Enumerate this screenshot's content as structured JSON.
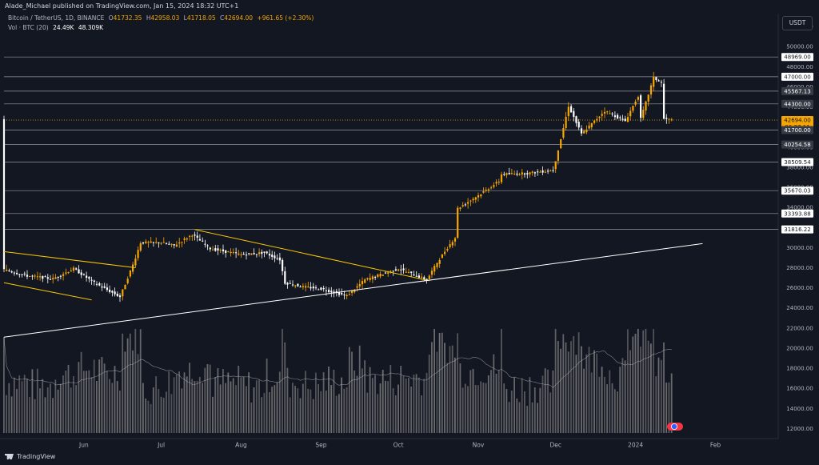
{
  "header": {
    "publisher": "Alade_Michael published on TradingView.com, Jan 15, 2024 18:32 UTC+1",
    "symbol": "Bitcoin / TetherUS, 1D, BINANCE",
    "ohlc": {
      "open_label": "O",
      "open": "41732.35",
      "high_label": "H",
      "high": "42958.03",
      "low_label": "L",
      "low": "41718.05",
      "close_label": "C",
      "close": "42694.00",
      "change": "+961.65 (+2.30%)"
    },
    "volume": {
      "label": "Vol · BTC (20)",
      "value": "24.49K",
      "ma": "48.309K"
    }
  },
  "currency_button": "USDT",
  "footer": {
    "brand": "TradingView"
  },
  "colors": {
    "background": "#131722",
    "up": "#f7a600",
    "down": "#ffffff",
    "trendline_yellow": "#f7c600",
    "trendline_white": "#ffffff",
    "level_line": "#9598a1",
    "volume": "#808080"
  },
  "chart_data": {
    "type": "candlestick",
    "symbol": "BTCUSDT",
    "timeframe": "1D",
    "price_axis": {
      "range": [
        11000,
        54000
      ],
      "ticks": [
        "52000.00",
        "50000.00",
        "48000.00",
        "46000.00",
        "44000.00",
        "42000.00",
        "40000.00",
        "38000.00",
        "36000.00",
        "34000.00",
        "32000.00",
        "30000.00",
        "28000.00",
        "26000.00",
        "24000.00",
        "22000.00",
        "20000.00",
        "18000.00",
        "16000.00",
        "14000.00",
        "12000.00"
      ]
    },
    "time_axis": {
      "start": "2023-05-01",
      "end": "2024-02-12",
      "ticks": [
        {
          "label": "Jun",
          "date": "2023-06-01"
        },
        {
          "label": "Jul",
          "date": "2023-07-01"
        },
        {
          "label": "Aug",
          "date": "2023-08-01"
        },
        {
          "label": "Sep",
          "date": "2023-09-01"
        },
        {
          "label": "Oct",
          "date": "2023-10-01"
        },
        {
          "label": "Nov",
          "date": "2023-11-01"
        },
        {
          "label": "Dec",
          "date": "2023-12-01"
        },
        {
          "label": "2024",
          "date": "2024-01-01"
        },
        {
          "label": "Feb",
          "date": "2024-02-01"
        }
      ]
    },
    "price_path": [
      [
        "2023-05-01",
        27800
      ],
      [
        "2023-05-10",
        27200
      ],
      [
        "2023-05-20",
        26900
      ],
      [
        "2023-05-28",
        27900
      ],
      [
        "2023-06-05",
        26500
      ],
      [
        "2023-06-10",
        25800
      ],
      [
        "2023-06-15",
        25100
      ],
      [
        "2023-06-20",
        28300
      ],
      [
        "2023-06-23",
        30500
      ],
      [
        "2023-07-01",
        30500
      ],
      [
        "2023-07-06",
        30200
      ],
      [
        "2023-07-13",
        31300
      ],
      [
        "2023-07-20",
        29900
      ],
      [
        "2023-08-01",
        29300
      ],
      [
        "2023-08-10",
        29500
      ],
      [
        "2023-08-16",
        28800
      ],
      [
        "2023-08-18",
        26500
      ],
      [
        "2023-08-25",
        26100
      ],
      [
        "2023-09-01",
        25900
      ],
      [
        "2023-09-11",
        25200
      ],
      [
        "2023-09-18",
        26800
      ],
      [
        "2023-10-01",
        27900
      ],
      [
        "2023-10-05",
        27500
      ],
      [
        "2023-10-12",
        26800
      ],
      [
        "2023-10-16",
        28500
      ],
      [
        "2023-10-20",
        30000
      ],
      [
        "2023-10-23",
        31000
      ],
      [
        "2023-10-24",
        33900
      ],
      [
        "2023-11-01",
        35200
      ],
      [
        "2023-11-09",
        36600
      ],
      [
        "2023-11-10",
        37300
      ],
      [
        "2023-11-20",
        37400
      ],
      [
        "2023-11-30",
        37700
      ],
      [
        "2023-12-01",
        38700
      ],
      [
        "2023-12-04",
        41900
      ],
      [
        "2023-12-06",
        44100
      ],
      [
        "2023-12-11",
        41300
      ],
      [
        "2023-12-20",
        43600
      ],
      [
        "2023-12-28",
        42600
      ],
      [
        "2024-01-02",
        45100
      ],
      [
        "2024-01-03",
        42800
      ],
      [
        "2024-01-08",
        46900
      ],
      [
        "2024-01-11",
        46400
      ],
      [
        "2024-01-12",
        42800
      ],
      [
        "2024-01-15",
        42694
      ]
    ],
    "levels": [
      {
        "price": 48969.0,
        "label": "48969.00",
        "style": "light"
      },
      {
        "price": 47000.0,
        "label": "47000.00",
        "style": "light"
      },
      {
        "price": 45567.13,
        "label": "45567.13",
        "style": "dark"
      },
      {
        "price": 44300.0,
        "label": "44300.00",
        "style": "dark"
      },
      {
        "price": 42694.0,
        "label": "42694.00",
        "style": "current"
      },
      {
        "price": 41700.0,
        "label": "41700.00",
        "style": "dark"
      },
      {
        "price": 40254.58,
        "label": "40254.58",
        "style": "dark"
      },
      {
        "price": 38509.54,
        "label": "38509.54",
        "style": "light"
      },
      {
        "price": 35670.03,
        "label": "35670.03",
        "style": "light"
      },
      {
        "price": 33393.88,
        "label": "33393.88",
        "style": "light"
      },
      {
        "price": 31816.22,
        "label": "31816.22",
        "style": "light"
      }
    ],
    "current_price": {
      "price": 42694.0,
      "label": "42694.00",
      "countdown": "06:27:11"
    },
    "trendlines": [
      {
        "color": "yellow",
        "from": [
          "2023-05-01",
          29600
        ],
        "to": [
          "2023-06-21",
          28000
        ]
      },
      {
        "color": "yellow",
        "from": [
          "2023-05-01",
          26500
        ],
        "to": [
          "2023-06-04",
          24800
        ]
      },
      {
        "color": "yellow",
        "from": [
          "2023-07-14",
          31800
        ],
        "to": [
          "2023-10-13",
          26700
        ]
      },
      {
        "color": "white",
        "from": [
          "2023-05-01",
          21100
        ],
        "to": [
          "2024-01-27",
          30400
        ]
      }
    ]
  }
}
